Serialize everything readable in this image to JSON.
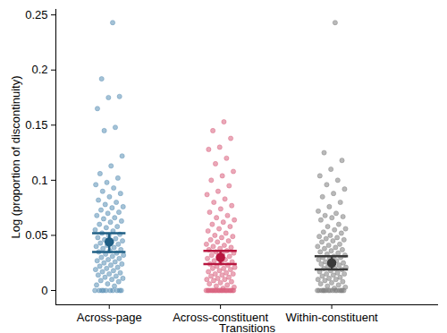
{
  "chart_data": {
    "type": "scatter",
    "xlabel": "Transitions",
    "ylabel": "Log (proportion of discontinuity)",
    "categories": [
      "Across-page",
      "Across-constituent",
      "Within-constituent"
    ],
    "colors": [
      "#5a8fb5",
      "#d9607e",
      "#7f7f7f"
    ],
    "values": [
      [
        0.243,
        0.192,
        0.176,
        0.175,
        0.165,
        0.148,
        0.145,
        0.122,
        0.113,
        0.106,
        0.102,
        0.098,
        0.096,
        0.093,
        0.09,
        0.088,
        0.085,
        0.082,
        0.08,
        0.078,
        0.076,
        0.075,
        0.073,
        0.071,
        0.07,
        0.068,
        0.066,
        0.065,
        0.063,
        0.062,
        0.06,
        0.058,
        0.057,
        0.055,
        0.054,
        0.052,
        0.051,
        0.05,
        0.048,
        0.047,
        0.046,
        0.045,
        0.044,
        0.043,
        0.042,
        0.041,
        0.04,
        0.039,
        0.038,
        0.037,
        0.036,
        0.035,
        0.034,
        0.033,
        0.032,
        0.031,
        0.03,
        0.029,
        0.028,
        0.027,
        0.026,
        0.025,
        0.024,
        0.023,
        0.022,
        0.021,
        0.02,
        0.019,
        0.018,
        0.017,
        0.016,
        0.015,
        0.014,
        0.013,
        0.012,
        0.011,
        0.01,
        0.009,
        0.008,
        0.006,
        0.005,
        0.004,
        0,
        0,
        0,
        0,
        0,
        0,
        0,
        0,
        0,
        0
      ],
      [
        0.153,
        0.145,
        0.138,
        0.13,
        0.128,
        0.12,
        0.115,
        0.108,
        0.104,
        0.1,
        0.095,
        0.09,
        0.087,
        0.083,
        0.08,
        0.077,
        0.074,
        0.071,
        0.068,
        0.066,
        0.064,
        0.062,
        0.06,
        0.058,
        0.056,
        0.054,
        0.052,
        0.05,
        0.049,
        0.048,
        0.046,
        0.045,
        0.044,
        0.042,
        0.041,
        0.04,
        0.039,
        0.038,
        0.037,
        0.036,
        0.035,
        0.034,
        0.033,
        0.032,
        0.031,
        0.03,
        0.029,
        0.028,
        0.027,
        0.026,
        0.025,
        0.024,
        0.023,
        0.022,
        0.021,
        0.02,
        0.02,
        0.019,
        0.018,
        0.017,
        0.016,
        0.015,
        0.015,
        0.014,
        0.013,
        0.012,
        0.011,
        0.01,
        0.01,
        0.009,
        0.008,
        0.007,
        0.006,
        0.005,
        0.004,
        0.003,
        0.002,
        0,
        0,
        0,
        0,
        0,
        0,
        0,
        0,
        0,
        0,
        0,
        0,
        0,
        0,
        0,
        0,
        0,
        0,
        0,
        0,
        0
      ],
      [
        0.243,
        0.125,
        0.118,
        0.11,
        0.104,
        0.1,
        0.096,
        0.092,
        0.088,
        0.085,
        0.08,
        0.076,
        0.072,
        0.07,
        0.068,
        0.067,
        0.066,
        0.064,
        0.06,
        0.058,
        0.056,
        0.055,
        0.053,
        0.052,
        0.05,
        0.049,
        0.048,
        0.047,
        0.046,
        0.045,
        0.044,
        0.042,
        0.041,
        0.04,
        0.039,
        0.038,
        0.037,
        0.036,
        0.035,
        0.034,
        0.033,
        0.032,
        0.031,
        0.03,
        0.03,
        0.029,
        0.028,
        0.027,
        0.026,
        0.025,
        0.025,
        0.024,
        0.023,
        0.022,
        0.021,
        0.02,
        0.02,
        0.019,
        0.018,
        0.017,
        0.016,
        0.015,
        0.015,
        0.014,
        0.013,
        0.012,
        0.011,
        0.01,
        0.01,
        0.009,
        0.008,
        0.007,
        0.006,
        0.005,
        0.004,
        0.003,
        0.002,
        0,
        0,
        0,
        0,
        0,
        0,
        0,
        0,
        0,
        0,
        0,
        0,
        0,
        0,
        0
      ]
    ],
    "error_bars": {
      "mean": [
        0.044,
        0.03,
        0.025
      ],
      "lower": [
        0.035,
        0.024,
        0.019
      ],
      "upper": [
        0.052,
        0.036,
        0.031
      ],
      "colors": [
        "#1f5f85",
        "#b8163f",
        "#3a3a3a"
      ]
    },
    "ylim": [
      -0.013,
      0.255
    ],
    "yticks": [
      0,
      0.05,
      0.1,
      0.15,
      0.2,
      0.25
    ]
  }
}
